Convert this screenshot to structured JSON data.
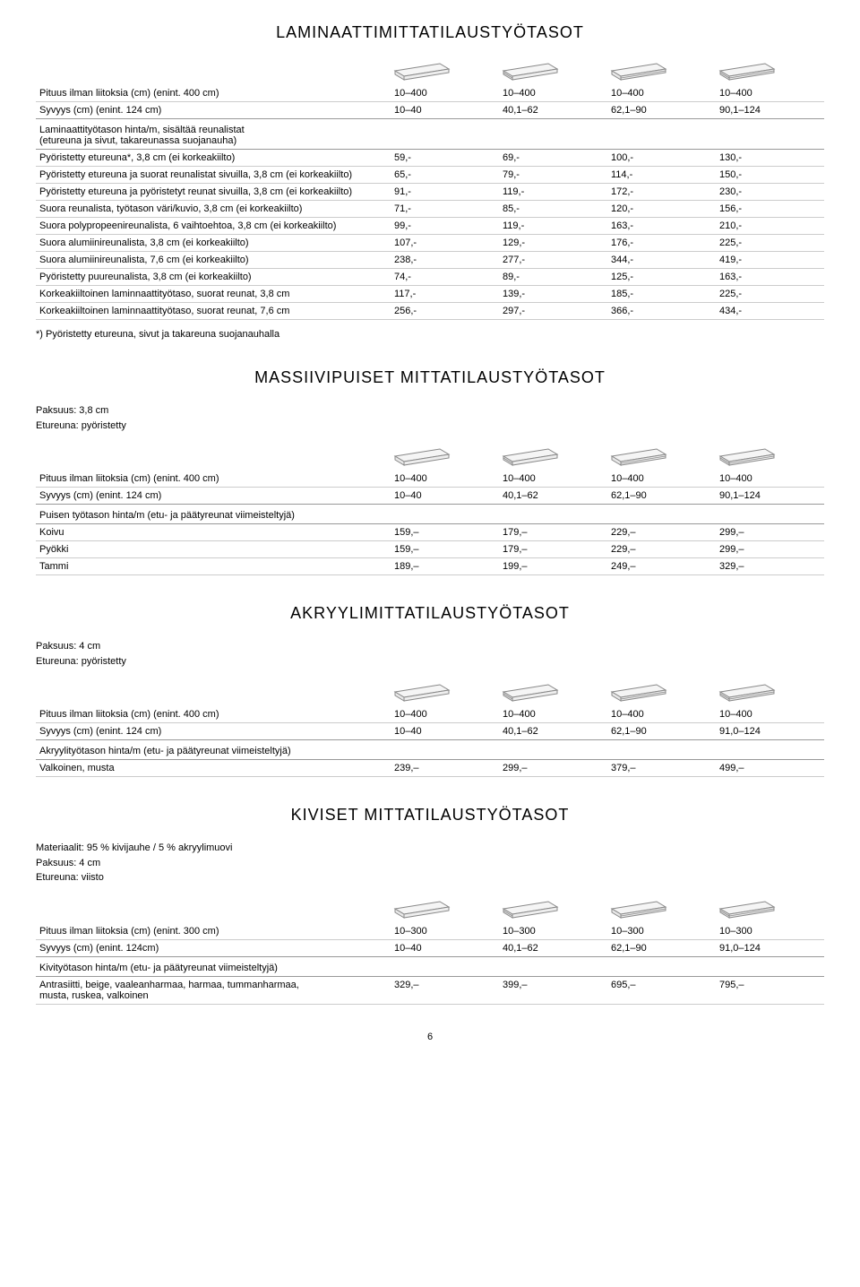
{
  "page_number": "6",
  "icon": {
    "stroke": "#888888",
    "fill": "#f5f5f5",
    "w": 70,
    "h": 30
  },
  "sections": [
    {
      "title": "LAMINAATTIMITTATILAUSTYÖTASOT",
      "show_icons": true,
      "header_rows": [
        {
          "label": "Pituus ilman liitoksia (cm) (enint. 400 cm)",
          "vals": [
            "10–400",
            "10–400",
            "10–400",
            "10–400"
          ],
          "sep": false
        },
        {
          "label": "Syvyys (cm) (enint. 124 cm)",
          "vals": [
            "10–40",
            "40,1–62",
            "62,1–90",
            "90,1–124"
          ],
          "sep": true
        }
      ],
      "group_heading": "Laminaattityötason hinta/m, sisältää reunalistat\n(etureuna ja sivut, takareunassa suojanauha)",
      "rows": [
        {
          "label": "Pyöristetty etureuna*, 3,8 cm (ei korkeakiilto)",
          "vals": [
            "59,-",
            "69,-",
            "100,-",
            "130,-"
          ]
        },
        {
          "label": "Pyöristetty etureuna ja suorat reunalistat sivuilla, 3,8 cm (ei korkeakiilto)",
          "vals": [
            "65,-",
            "79,-",
            "114,-",
            "150,-"
          ]
        },
        {
          "label": "Pyöristetty etureuna ja pyöristetyt reunat sivuilla, 3,8 cm (ei korkeakiilto)",
          "vals": [
            "91,-",
            "119,-",
            "172,-",
            "230,-"
          ]
        },
        {
          "label": "Suora reunalista, työtason väri/kuvio, 3,8 cm (ei korkeakiilto)",
          "vals": [
            "71,-",
            "85,-",
            "120,-",
            "156,-"
          ]
        },
        {
          "label": "Suora polypropeenireunalista, 6 vaihtoehtoa, 3,8 cm (ei korkeakiilto)",
          "vals": [
            "99,-",
            "119,-",
            "163,-",
            "210,-"
          ]
        },
        {
          "label": "Suora alumiinireunalista, 3,8 cm (ei korkeakiilto)",
          "vals": [
            "107,-",
            "129,-",
            "176,-",
            "225,-"
          ]
        },
        {
          "label": "Suora alumiinireunalista, 7,6 cm (ei korkeakiilto)",
          "vals": [
            "238,-",
            "277,-",
            "344,-",
            "419,-"
          ]
        },
        {
          "label": "Pyöristetty puureunalista, 3,8 cm (ei korkeakiilto)",
          "vals": [
            "74,-",
            "89,-",
            "125,-",
            "163,-"
          ]
        },
        {
          "label": "Korkeakiiltoinen laminnaattityötaso, suorat reunat, 3,8 cm",
          "vals": [
            "117,-",
            "139,-",
            "185,-",
            "225,-"
          ]
        },
        {
          "label": "Korkeakiiltoinen laminnaattityötaso, suorat reunat, 7,6 cm",
          "vals": [
            "256,-",
            "297,-",
            "366,-",
            "434,-"
          ]
        }
      ],
      "footnote": "*) Pyöristetty etureuna, sivut ja takareuna suojanauhalla"
    },
    {
      "title": "MASSIIVIPUISET MITTATILAUSTYÖTASOT",
      "sub_lines": [
        "Paksuus: 3,8 cm",
        "Etureuna: pyöristetty"
      ],
      "show_icons": true,
      "header_rows": [
        {
          "label": "Pituus ilman liitoksia (cm) (enint. 400 cm)",
          "vals": [
            "10–400",
            "10–400",
            "10–400",
            "10–400"
          ],
          "sep": false
        },
        {
          "label": "Syvyys (cm) (enint. 124 cm)",
          "vals": [
            "10–40",
            "40,1–62",
            "62,1–90",
            "90,1–124"
          ],
          "sep": true
        }
      ],
      "group_heading": "Puisen työtason hinta/m (etu- ja päätyreunat viimeisteltyjä)",
      "rows": [
        {
          "label": "Koivu",
          "vals": [
            "159,–",
            "179,–",
            "229,–",
            "299,–"
          ]
        },
        {
          "label": "Pyökki",
          "vals": [
            "159,–",
            "179,–",
            "229,–",
            "299,–"
          ]
        },
        {
          "label": "Tammi",
          "vals": [
            "189,–",
            "199,–",
            "249,–",
            "329,–"
          ]
        }
      ]
    },
    {
      "title": "AKRYYLIMITTATILAUSTYÖTASOT",
      "sub_lines": [
        "Paksuus: 4 cm",
        "Etureuna: pyöristetty"
      ],
      "show_icons": true,
      "header_rows": [
        {
          "label": "Pituus ilman liitoksia (cm) (enint. 400 cm)",
          "vals": [
            "10–400",
            "10–400",
            "10–400",
            "10–400"
          ],
          "sep": false
        },
        {
          "label": "Syvyys (cm) (enint. 124 cm)",
          "vals": [
            "10–40",
            "40,1–62",
            "62,1–90",
            "91,0–124"
          ],
          "sep": true
        }
      ],
      "group_heading": "Akryylityötason hinta/m (etu- ja päätyreunat viimeisteltyjä)",
      "rows": [
        {
          "label": "Valkoinen, musta",
          "vals": [
            "239,–",
            "299,–",
            "379,–",
            "499,–"
          ]
        }
      ]
    },
    {
      "title": "KIVISET MITTATILAUSTYÖTASOT",
      "sub_lines": [
        "Materiaalit: 95 % kivijauhe / 5 % akryylimuovi",
        "Paksuus: 4 cm",
        "Etureuna: viisto"
      ],
      "show_icons": true,
      "header_rows": [
        {
          "label": "Pituus ilman liitoksia (cm) (enint. 300 cm)",
          "vals": [
            "10–300",
            "10–300",
            "10–300",
            "10–300"
          ],
          "sep": false
        },
        {
          "label": "Syvyys (cm) (enint. 124cm)",
          "vals": [
            "10–40",
            "40,1–62",
            "62,1–90",
            "91,0–124"
          ],
          "sep": true
        }
      ],
      "group_heading": "Kivityötason hinta/m (etu- ja päätyreunat viimeisteltyjä)",
      "rows": [
        {
          "label": "Antrasiitti, beige, vaaleanharmaa, harmaa, tummanharmaa,\nmusta, ruskea, valkoinen",
          "vals": [
            "329,–",
            "399,–",
            "695,–",
            "795,–"
          ]
        }
      ]
    }
  ]
}
